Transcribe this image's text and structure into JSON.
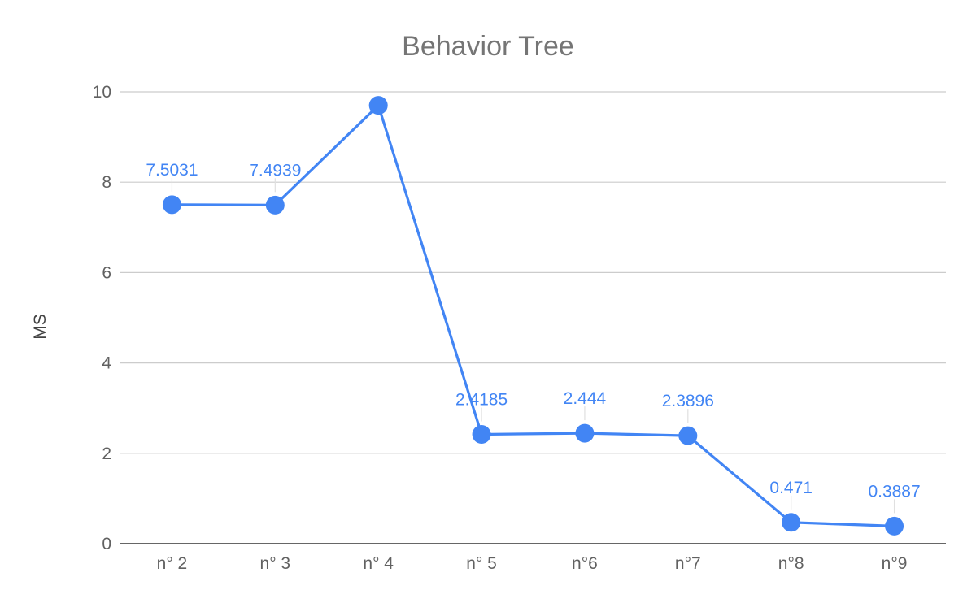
{
  "chart_data": {
    "type": "line",
    "title": "Behavior Tree",
    "xlabel": "",
    "ylabel": "MS",
    "categories": [
      "n° 2",
      "n° 3",
      "n° 4",
      "n° 5",
      "n°6",
      "n°7",
      "n°8",
      "n°9"
    ],
    "series": [
      {
        "values": [
          7.5031,
          7.4939,
          9.7,
          2.4185,
          2.444,
          2.3896,
          0.471,
          0.3887
        ],
        "data_labels": [
          "7.5031",
          "7.4939",
          "",
          "2.4185",
          "2.444",
          "2.3896",
          "0.471",
          "0.3887"
        ],
        "color": "#4285f4"
      }
    ],
    "ylim": [
      0,
      10
    ],
    "yticks": [
      {
        "value": 0,
        "label": "0"
      },
      {
        "value": 2,
        "label": "2"
      },
      {
        "value": 4,
        "label": "4"
      },
      {
        "value": 6,
        "label": "6"
      },
      {
        "value": 8,
        "label": "8"
      },
      {
        "value": 10,
        "label": "10"
      }
    ],
    "grid": true,
    "legend": "none",
    "colors": {
      "series": "#4285f4",
      "grid": "#cccccc",
      "baseline": "#333333",
      "label_stem": "#e0e0e0"
    }
  }
}
